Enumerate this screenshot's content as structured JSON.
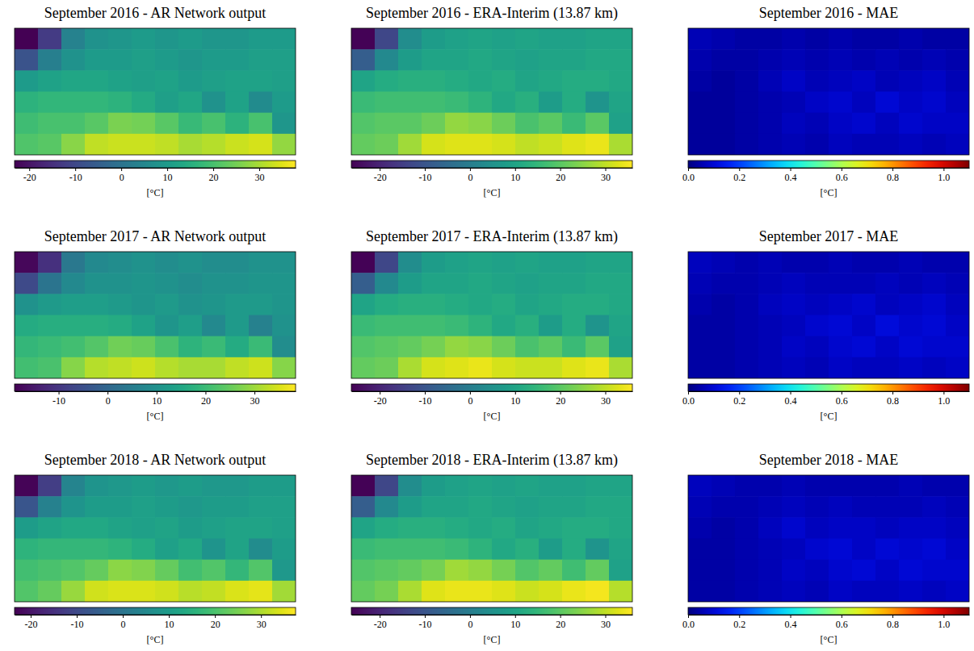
{
  "chart_data": [
    {
      "type": "heatmap",
      "title": "September 2016 - AR Network output",
      "color": "viridis",
      "tick_labels": false,
      "clim": [
        -23.2,
        37.9
      ],
      "cticks": [
        -20,
        -10,
        0,
        10,
        20,
        30
      ],
      "colorbar_label": "[°C]",
      "cells": [
        [
          -23,
          -12.5,
          4,
          8,
          9,
          10,
          9,
          10,
          9,
          9,
          10,
          10
        ],
        [
          -7.5,
          3,
          8,
          10,
          10,
          11,
          10,
          9,
          10,
          10,
          11,
          11
        ],
        [
          10,
          12,
          13,
          13,
          12,
          11,
          12,
          10,
          11,
          12,
          12,
          11
        ],
        [
          16,
          17,
          17,
          17,
          16,
          14,
          11,
          13,
          8,
          12,
          6,
          10
        ],
        [
          19,
          20,
          20,
          22,
          25.5,
          25,
          22,
          18,
          20,
          16,
          20,
          9
        ],
        [
          21,
          22,
          27,
          32,
          33,
          33,
          32,
          30,
          31,
          33,
          34,
          28
        ]
      ]
    },
    {
      "type": "heatmap",
      "title": "September 2016 - ERA-Interim (13.87 km)",
      "color": "viridis",
      "tick_labels": false,
      "clim": [
        -26.3,
        36
      ],
      "cticks": [
        -20,
        -10,
        0,
        10,
        20,
        30
      ],
      "colorbar_label": "[°C]",
      "cells": [
        [
          -26,
          -13,
          4,
          8,
          9,
          10,
          9,
          10,
          9,
          9,
          10,
          10
        ],
        [
          -8,
          3,
          8,
          10,
          10,
          11,
          10,
          9,
          10,
          10,
          11,
          11
        ],
        [
          10,
          12,
          13,
          13,
          12,
          11,
          12,
          10,
          11,
          12,
          12,
          11
        ],
        [
          16,
          17,
          17,
          17,
          16,
          14,
          11,
          13,
          8,
          12,
          6,
          10
        ],
        [
          19,
          20,
          20,
          22,
          26,
          25,
          22,
          18,
          20,
          16,
          20,
          9
        ],
        [
          21,
          22,
          27,
          32,
          33,
          33,
          32,
          30,
          31,
          33,
          34,
          28
        ]
      ]
    },
    {
      "type": "heatmap",
      "title": "September 2016 - MAE",
      "color": "jet",
      "tick_labels": false,
      "clim": [
        0,
        1.1
      ],
      "cticks": [
        {
          "value": 0,
          "label": "0.0"
        },
        0.2,
        0.4,
        0.6,
        0.8,
        {
          "value": 1,
          "label": "1.0"
        }
      ],
      "colorbar_label": "[°C]",
      "cells": [
        [
          0.06,
          0.05,
          0.04,
          0.04,
          0.05,
          0.04,
          0.05,
          0.04,
          0.04,
          0.05,
          0.04,
          0.04
        ],
        [
          0.05,
          0.04,
          0.04,
          0.05,
          0.06,
          0.05,
          0.06,
          0.05,
          0.06,
          0.05,
          0.06,
          0.05
        ],
        [
          0.04,
          0.03,
          0.04,
          0.06,
          0.08,
          0.06,
          0.07,
          0.08,
          0.06,
          0.07,
          0.08,
          0.06
        ],
        [
          0.03,
          0.03,
          0.04,
          0.05,
          0.06,
          0.08,
          0.09,
          0.07,
          0.1,
          0.08,
          0.09,
          0.07
        ],
        [
          0.03,
          0.03,
          0.04,
          0.05,
          0.07,
          0.06,
          0.08,
          0.09,
          0.07,
          0.09,
          0.08,
          0.08
        ],
        [
          0.03,
          0.03,
          0.04,
          0.05,
          0.06,
          0.05,
          0.07,
          0.06,
          0.06,
          0.07,
          0.06,
          0.07
        ]
      ]
    },
    {
      "type": "heatmap",
      "title": "September 2017 - AR Network output",
      "color": "viridis",
      "tick_labels": false,
      "clim": [
        -19,
        38.4
      ],
      "cticks": [
        -10,
        0,
        10,
        20,
        30
      ],
      "colorbar_label": "[°C]",
      "cells": [
        [
          -18,
          -11,
          4,
          8,
          9,
          10,
          9,
          10,
          9,
          9,
          10,
          10
        ],
        [
          -6,
          3,
          8,
          10,
          10,
          11,
          10,
          9,
          10,
          10,
          11,
          11
        ],
        [
          10,
          12,
          13,
          13,
          12,
          11,
          12,
          10,
          11,
          12,
          12,
          11
        ],
        [
          16,
          17,
          17,
          17,
          16,
          14,
          11,
          13,
          8,
          12,
          6,
          10
        ],
        [
          19,
          20,
          21,
          23,
          26,
          25,
          22,
          18,
          20,
          16,
          20,
          9
        ],
        [
          21,
          22,
          28,
          32,
          33,
          34,
          32,
          31,
          31,
          33,
          34,
          28
        ]
      ]
    },
    {
      "type": "heatmap",
      "title": "September 2017 - ERA-Interim (13.87 km)",
      "color": "viridis",
      "tick_labels": false,
      "clim": [
        -26.3,
        36
      ],
      "cticks": [
        -20,
        -10,
        0,
        10,
        20,
        30
      ],
      "colorbar_label": "[°C]",
      "cells": [
        [
          -26,
          -13,
          4,
          8,
          9,
          10,
          9,
          10,
          9,
          9,
          10,
          10
        ],
        [
          -8,
          3,
          8,
          10,
          10,
          11,
          10,
          9,
          10,
          10,
          11,
          11
        ],
        [
          10,
          12,
          13,
          13,
          12,
          11,
          12,
          10,
          11,
          12,
          12,
          11
        ],
        [
          16,
          17,
          17,
          17,
          16,
          14,
          11,
          13,
          8,
          12,
          6,
          10
        ],
        [
          19,
          20,
          21,
          23,
          26,
          25,
          22,
          18,
          20,
          16,
          20,
          9
        ],
        [
          21,
          22,
          28,
          32,
          33,
          34,
          32,
          31,
          31,
          33,
          34,
          28
        ]
      ]
    },
    {
      "type": "heatmap",
      "title": "September 2017 - MAE",
      "color": "jet",
      "tick_labels": false,
      "clim": [
        0,
        1.1
      ],
      "cticks": [
        {
          "value": 0,
          "label": "0.0"
        },
        0.2,
        0.4,
        0.6,
        0.8,
        {
          "value": 1,
          "label": "1.0"
        }
      ],
      "colorbar_label": "[°C]",
      "cells": [
        [
          0.07,
          0.06,
          0.05,
          0.06,
          0.05,
          0.05,
          0.06,
          0.05,
          0.05,
          0.06,
          0.05,
          0.05
        ],
        [
          0.06,
          0.05,
          0.05,
          0.06,
          0.07,
          0.06,
          0.06,
          0.06,
          0.07,
          0.06,
          0.07,
          0.06
        ],
        [
          0.05,
          0.04,
          0.05,
          0.07,
          0.08,
          0.07,
          0.08,
          0.09,
          0.07,
          0.08,
          0.09,
          0.07
        ],
        [
          0.04,
          0.04,
          0.05,
          0.06,
          0.07,
          0.09,
          0.1,
          0.08,
          0.11,
          0.09,
          0.1,
          0.08
        ],
        [
          0.04,
          0.04,
          0.05,
          0.06,
          0.08,
          0.07,
          0.09,
          0.1,
          0.08,
          0.1,
          0.09,
          0.09
        ],
        [
          0.04,
          0.04,
          0.05,
          0.06,
          0.07,
          0.06,
          0.08,
          0.07,
          0.07,
          0.08,
          0.07,
          0.08
        ]
      ]
    },
    {
      "type": "heatmap",
      "title": "September 2018 - AR Network output",
      "color": "viridis",
      "tick_labels": false,
      "clim": [
        -23.5,
        37.5
      ],
      "cticks": [
        -20,
        -10,
        0,
        10,
        20,
        30
      ],
      "colorbar_label": "[°C]",
      "cells": [
        [
          -23,
          -12.5,
          4,
          8,
          9,
          10,
          9,
          10,
          9,
          9,
          10,
          10
        ],
        [
          -7.5,
          3,
          8,
          10,
          10,
          11,
          10,
          9,
          10,
          10,
          11,
          11
        ],
        [
          10,
          12,
          13,
          13,
          12,
          11,
          12,
          10,
          11,
          12,
          12,
          11
        ],
        [
          16,
          17,
          17,
          17,
          16,
          14,
          11,
          13,
          8,
          12,
          6,
          10
        ],
        [
          19,
          20,
          21,
          23,
          27,
          26,
          23,
          19,
          21,
          17,
          21,
          9
        ],
        [
          21,
          23,
          28,
          33,
          34,
          34,
          33,
          31,
          32,
          34,
          35,
          29
        ]
      ]
    },
    {
      "type": "heatmap",
      "title": "September 2018 - ERA-Interim (13.87 km)",
      "color": "viridis",
      "tick_labels": false,
      "clim": [
        -26.3,
        36
      ],
      "cticks": [
        -20,
        -10,
        0,
        10,
        20,
        30
      ],
      "colorbar_label": "[°C]",
      "cells": [
        [
          -26,
          -13,
          4,
          8,
          9,
          10,
          9,
          10,
          9,
          9,
          10,
          10
        ],
        [
          -8,
          3,
          8,
          10,
          10,
          11,
          10,
          9,
          10,
          10,
          11,
          11
        ],
        [
          10,
          12,
          13,
          13,
          12,
          11,
          12,
          10,
          11,
          12,
          12,
          11
        ],
        [
          16,
          17,
          17,
          17,
          16,
          14,
          11,
          13,
          8,
          12,
          6,
          10
        ],
        [
          19,
          20,
          21,
          23,
          27,
          26,
          23,
          19,
          21,
          17,
          21,
          9
        ],
        [
          21,
          23,
          28,
          33,
          34,
          34,
          33,
          31,
          32,
          34,
          35,
          29
        ]
      ]
    },
    {
      "type": "heatmap",
      "title": "September 2018 - MAE",
      "color": "jet",
      "tick_labels": false,
      "clim": [
        0,
        1.1
      ],
      "cticks": [
        {
          "value": 0,
          "label": "0.0"
        },
        0.2,
        0.4,
        0.6,
        0.8,
        {
          "value": 1,
          "label": "1.0"
        }
      ],
      "colorbar_label": "[°C]",
      "cells": [
        [
          0.07,
          0.06,
          0.05,
          0.05,
          0.06,
          0.05,
          0.05,
          0.05,
          0.05,
          0.06,
          0.05,
          0.05
        ],
        [
          0.06,
          0.05,
          0.05,
          0.06,
          0.07,
          0.06,
          0.07,
          0.06,
          0.06,
          0.06,
          0.07,
          0.06
        ],
        [
          0.05,
          0.04,
          0.05,
          0.07,
          0.09,
          0.07,
          0.08,
          0.08,
          0.07,
          0.08,
          0.08,
          0.07
        ],
        [
          0.04,
          0.04,
          0.05,
          0.06,
          0.07,
          0.09,
          0.1,
          0.08,
          0.1,
          0.09,
          0.1,
          0.08
        ],
        [
          0.04,
          0.04,
          0.05,
          0.06,
          0.08,
          0.07,
          0.09,
          0.1,
          0.08,
          0.1,
          0.09,
          0.09
        ],
        [
          0.04,
          0.04,
          0.05,
          0.06,
          0.07,
          0.06,
          0.08,
          0.07,
          0.07,
          0.08,
          0.07,
          0.08
        ]
      ]
    }
  ]
}
